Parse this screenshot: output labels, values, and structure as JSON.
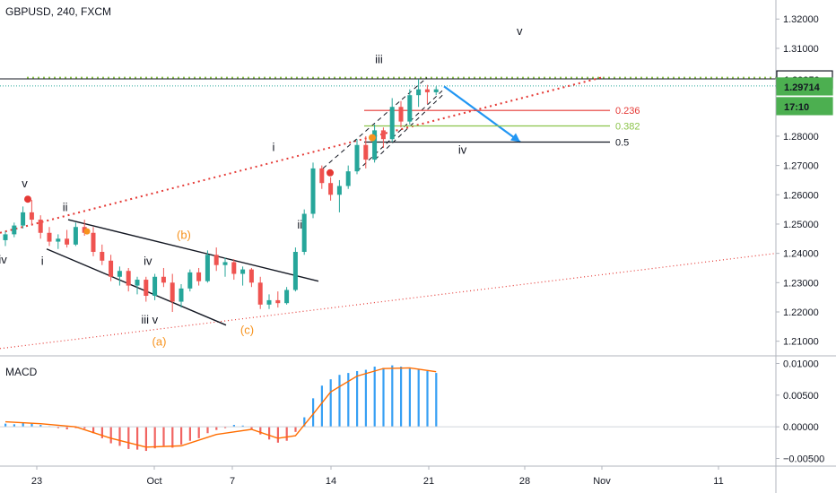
{
  "header": {
    "symbol": "GBPUSD, 240, FXCM"
  },
  "indicator": {
    "name": "MACD"
  },
  "colors": {
    "up": "#26a69a",
    "down": "#ef5350",
    "accent": "#2196f3",
    "green_dot": "#8bc34a",
    "red_dot": "#e53935",
    "orange": "#f7931e",
    "macd_hist": "#2196f3",
    "signal": "#ff6d00",
    "badge_green": "#4caf50",
    "badge_dark": "#131722"
  },
  "price_axis": {
    "ticks": [
      "1.32000",
      "1.31000",
      "1.30000",
      "1.29000",
      "1.28000",
      "1.27000",
      "1.26000",
      "1.25000",
      "1.24000",
      "1.23000",
      "1.22000",
      "1.21000"
    ],
    "labels": [
      {
        "text": "1.29950",
        "style": "dark"
      },
      {
        "text": "1.29714",
        "style": "green"
      },
      {
        "text": "17:10",
        "style": "green"
      }
    ]
  },
  "macd_axis": {
    "ticks": [
      "0.01000",
      "0.00500",
      "0.00000",
      "−0.00500"
    ]
  },
  "time_axis": {
    "ticks": [
      "23",
      "Oct",
      "7",
      "14",
      "21",
      "28",
      "Nov",
      "11"
    ]
  },
  "chart_data": {
    "type": "candlestick",
    "ylim": [
      1.205,
      1.3265
    ],
    "macd_ylim": [
      -0.0062,
      0.0112
    ],
    "candles": [
      [
        0,
        1.2445,
        1.2475,
        1.2425,
        1.2465
      ],
      [
        1,
        1.2465,
        1.2505,
        1.2455,
        1.2495
      ],
      [
        2,
        1.2495,
        1.256,
        1.2485,
        1.254
      ],
      [
        3,
        1.254,
        1.2582,
        1.2495,
        1.2515
      ],
      [
        4,
        1.2515,
        1.253,
        1.245,
        1.247
      ],
      [
        5,
        1.247,
        1.249,
        1.2425,
        1.244
      ],
      [
        6,
        1.244,
        1.2465,
        1.2415,
        1.245
      ],
      [
        7,
        1.245,
        1.248,
        1.242,
        1.243
      ],
      [
        8,
        1.243,
        1.2505,
        1.2425,
        1.249
      ],
      [
        9,
        1.249,
        1.2515,
        1.246,
        1.247
      ],
      [
        10,
        1.247,
        1.249,
        1.239,
        1.2405
      ],
      [
        11,
        1.2405,
        1.243,
        1.236,
        1.2375
      ],
      [
        12,
        1.2375,
        1.2395,
        1.2305,
        1.232
      ],
      [
        13,
        1.232,
        1.2355,
        1.229,
        1.234
      ],
      [
        14,
        1.234,
        1.235,
        1.227,
        1.229
      ],
      [
        15,
        1.229,
        1.232,
        1.226,
        1.231
      ],
      [
        16,
        1.231,
        1.232,
        1.2235,
        1.2255
      ],
      [
        17,
        1.2255,
        1.233,
        1.224,
        1.232
      ],
      [
        18,
        1.232,
        1.235,
        1.2285,
        1.23
      ],
      [
        19,
        1.23,
        1.233,
        1.22,
        1.2235
      ],
      [
        20,
        1.2235,
        1.2295,
        1.2215,
        1.228
      ],
      [
        21,
        1.228,
        1.2345,
        1.227,
        1.2335
      ],
      [
        22,
        1.2335,
        1.235,
        1.229,
        1.2305
      ],
      [
        23,
        1.2305,
        1.241,
        1.23,
        1.2395
      ],
      [
        24,
        1.2395,
        1.242,
        1.234,
        1.236
      ],
      [
        25,
        1.236,
        1.2385,
        1.232,
        1.237
      ],
      [
        26,
        1.237,
        1.238,
        1.231,
        1.233
      ],
      [
        27,
        1.233,
        1.2355,
        1.229,
        1.2345
      ],
      [
        28,
        1.2345,
        1.235,
        1.2285,
        1.23
      ],
      [
        29,
        1.23,
        1.232,
        1.221,
        1.2225
      ],
      [
        30,
        1.2225,
        1.226,
        1.221,
        1.224
      ],
      [
        31,
        1.224,
        1.227,
        1.2215,
        1.223
      ],
      [
        32,
        1.223,
        1.2285,
        1.2225,
        1.2275
      ],
      [
        33,
        1.2275,
        1.242,
        1.227,
        1.2405
      ],
      [
        34,
        1.2405,
        1.255,
        1.2395,
        1.2535
      ],
      [
        35,
        1.2535,
        1.271,
        1.252,
        1.269
      ],
      [
        36,
        1.269,
        1.27,
        1.262,
        1.264
      ],
      [
        37,
        1.264,
        1.266,
        1.258,
        1.26
      ],
      [
        38,
        1.26,
        1.265,
        1.254,
        1.263
      ],
      [
        39,
        1.263,
        1.27,
        1.262,
        1.268
      ],
      [
        40,
        1.268,
        1.279,
        1.267,
        1.277
      ],
      [
        41,
        1.277,
        1.28,
        1.269,
        1.272
      ],
      [
        42,
        1.272,
        1.284,
        1.271,
        1.282
      ],
      [
        43,
        1.282,
        1.283,
        1.276,
        1.279
      ],
      [
        44,
        1.279,
        1.293,
        1.278,
        1.29
      ],
      [
        45,
        1.29,
        1.292,
        1.283,
        1.285
      ],
      [
        46,
        1.285,
        1.296,
        1.284,
        1.294
      ],
      [
        47,
        1.294,
        1.2995,
        1.29,
        1.296
      ],
      [
        48,
        1.296,
        1.2975,
        1.291,
        1.295
      ],
      [
        49,
        1.295,
        1.297,
        1.294,
        1.296
      ]
    ],
    "macd": [
      [
        0,
        0.0005
      ],
      [
        1,
        0.0004
      ],
      [
        2,
        0.0006
      ],
      [
        3,
        0.0005
      ],
      [
        4,
        0.0003
      ],
      [
        5,
        0.0001
      ],
      [
        6,
        -0.0002
      ],
      [
        7,
        -0.0004
      ],
      [
        8,
        -0.0002
      ],
      [
        9,
        -0.0003
      ],
      [
        10,
        -0.001
      ],
      [
        11,
        -0.0018
      ],
      [
        12,
        -0.0026
      ],
      [
        13,
        -0.003
      ],
      [
        14,
        -0.0035
      ],
      [
        15,
        -0.0036
      ],
      [
        16,
        -0.0038
      ],
      [
        17,
        -0.0034
      ],
      [
        18,
        -0.003
      ],
      [
        19,
        -0.0033
      ],
      [
        20,
        -0.0028
      ],
      [
        21,
        -0.0022
      ],
      [
        22,
        -0.0018
      ],
      [
        23,
        -0.001
      ],
      [
        24,
        -0.0005
      ],
      [
        25,
        -0.0002
      ],
      [
        26,
        0.0003
      ],
      [
        27,
        0.0002
      ],
      [
        28,
        -0.0004
      ],
      [
        29,
        -0.0012
      ],
      [
        30,
        -0.002
      ],
      [
        31,
        -0.0025
      ],
      [
        32,
        -0.0022
      ],
      [
        33,
        -0.0008
      ],
      [
        34,
        0.0015
      ],
      [
        35,
        0.0045
      ],
      [
        36,
        0.0065
      ],
      [
        37,
        0.0075
      ],
      [
        38,
        0.0082
      ],
      [
        39,
        0.0085
      ],
      [
        40,
        0.0088
      ],
      [
        41,
        0.009
      ],
      [
        42,
        0.0095
      ],
      [
        43,
        0.0093
      ],
      [
        44,
        0.0097
      ],
      [
        45,
        0.0095
      ],
      [
        46,
        0.0092
      ],
      [
        47,
        0.009
      ],
      [
        48,
        0.0088
      ],
      [
        49,
        0.0085
      ]
    ],
    "signal": [
      [
        0,
        0.0008
      ],
      [
        4,
        0.0005
      ],
      [
        8,
        0.0
      ],
      [
        12,
        -0.0018
      ],
      [
        16,
        -0.0032
      ],
      [
        20,
        -0.003
      ],
      [
        24,
        -0.0012
      ],
      [
        28,
        -0.0004
      ],
      [
        31,
        -0.0018
      ],
      [
        33,
        -0.0014
      ],
      [
        35,
        0.002
      ],
      [
        37,
        0.0055
      ],
      [
        40,
        0.008
      ],
      [
        43,
        0.0092
      ],
      [
        46,
        0.0093
      ],
      [
        49,
        0.0087
      ]
    ],
    "fib_levels": [
      {
        "label": "0.236",
        "value": 1.2888,
        "color": "#e53935"
      },
      {
        "label": "0.382",
        "value": 1.2835,
        "color": "#8bc34a"
      },
      {
        "label": "0.5",
        "value": 1.278,
        "color": "#131722"
      }
    ],
    "wave_labels": [
      {
        "text": "v",
        "i": 2.2,
        "y": 1.2625,
        "color": "dark"
      },
      {
        "text": "iv",
        "i": -0.3,
        "y": 1.2365,
        "color": "dark"
      },
      {
        "text": "ii",
        "i": 6.8,
        "y": 1.2545,
        "color": "dark"
      },
      {
        "text": "i",
        "i": 4.2,
        "y": 1.236,
        "color": "dark"
      },
      {
        "text": "(b)",
        "i": 20.3,
        "y": 1.245,
        "color": "orange"
      },
      {
        "text": "iv",
        "i": 16.2,
        "y": 1.236,
        "color": "dark"
      },
      {
        "text": "iii v",
        "i": 16.4,
        "y": 1.216,
        "color": "dark"
      },
      {
        "text": "(a)",
        "i": 17.5,
        "y": 1.2085,
        "color": "orange"
      },
      {
        "text": "(c)",
        "i": 27.5,
        "y": 1.2125,
        "color": "orange"
      },
      {
        "text": "i",
        "i": 30.5,
        "y": 1.275,
        "color": "dark"
      },
      {
        "text": "ii",
        "i": 33.5,
        "y": 1.2485,
        "color": "dark"
      },
      {
        "text": "iii",
        "i": 42.5,
        "y": 1.305,
        "color": "dark"
      },
      {
        "text": "iv",
        "i": 52.0,
        "y": 1.274,
        "color": "dark"
      },
      {
        "text": "v",
        "i": 58.5,
        "y": 1.3145,
        "color": "dark"
      }
    ]
  }
}
